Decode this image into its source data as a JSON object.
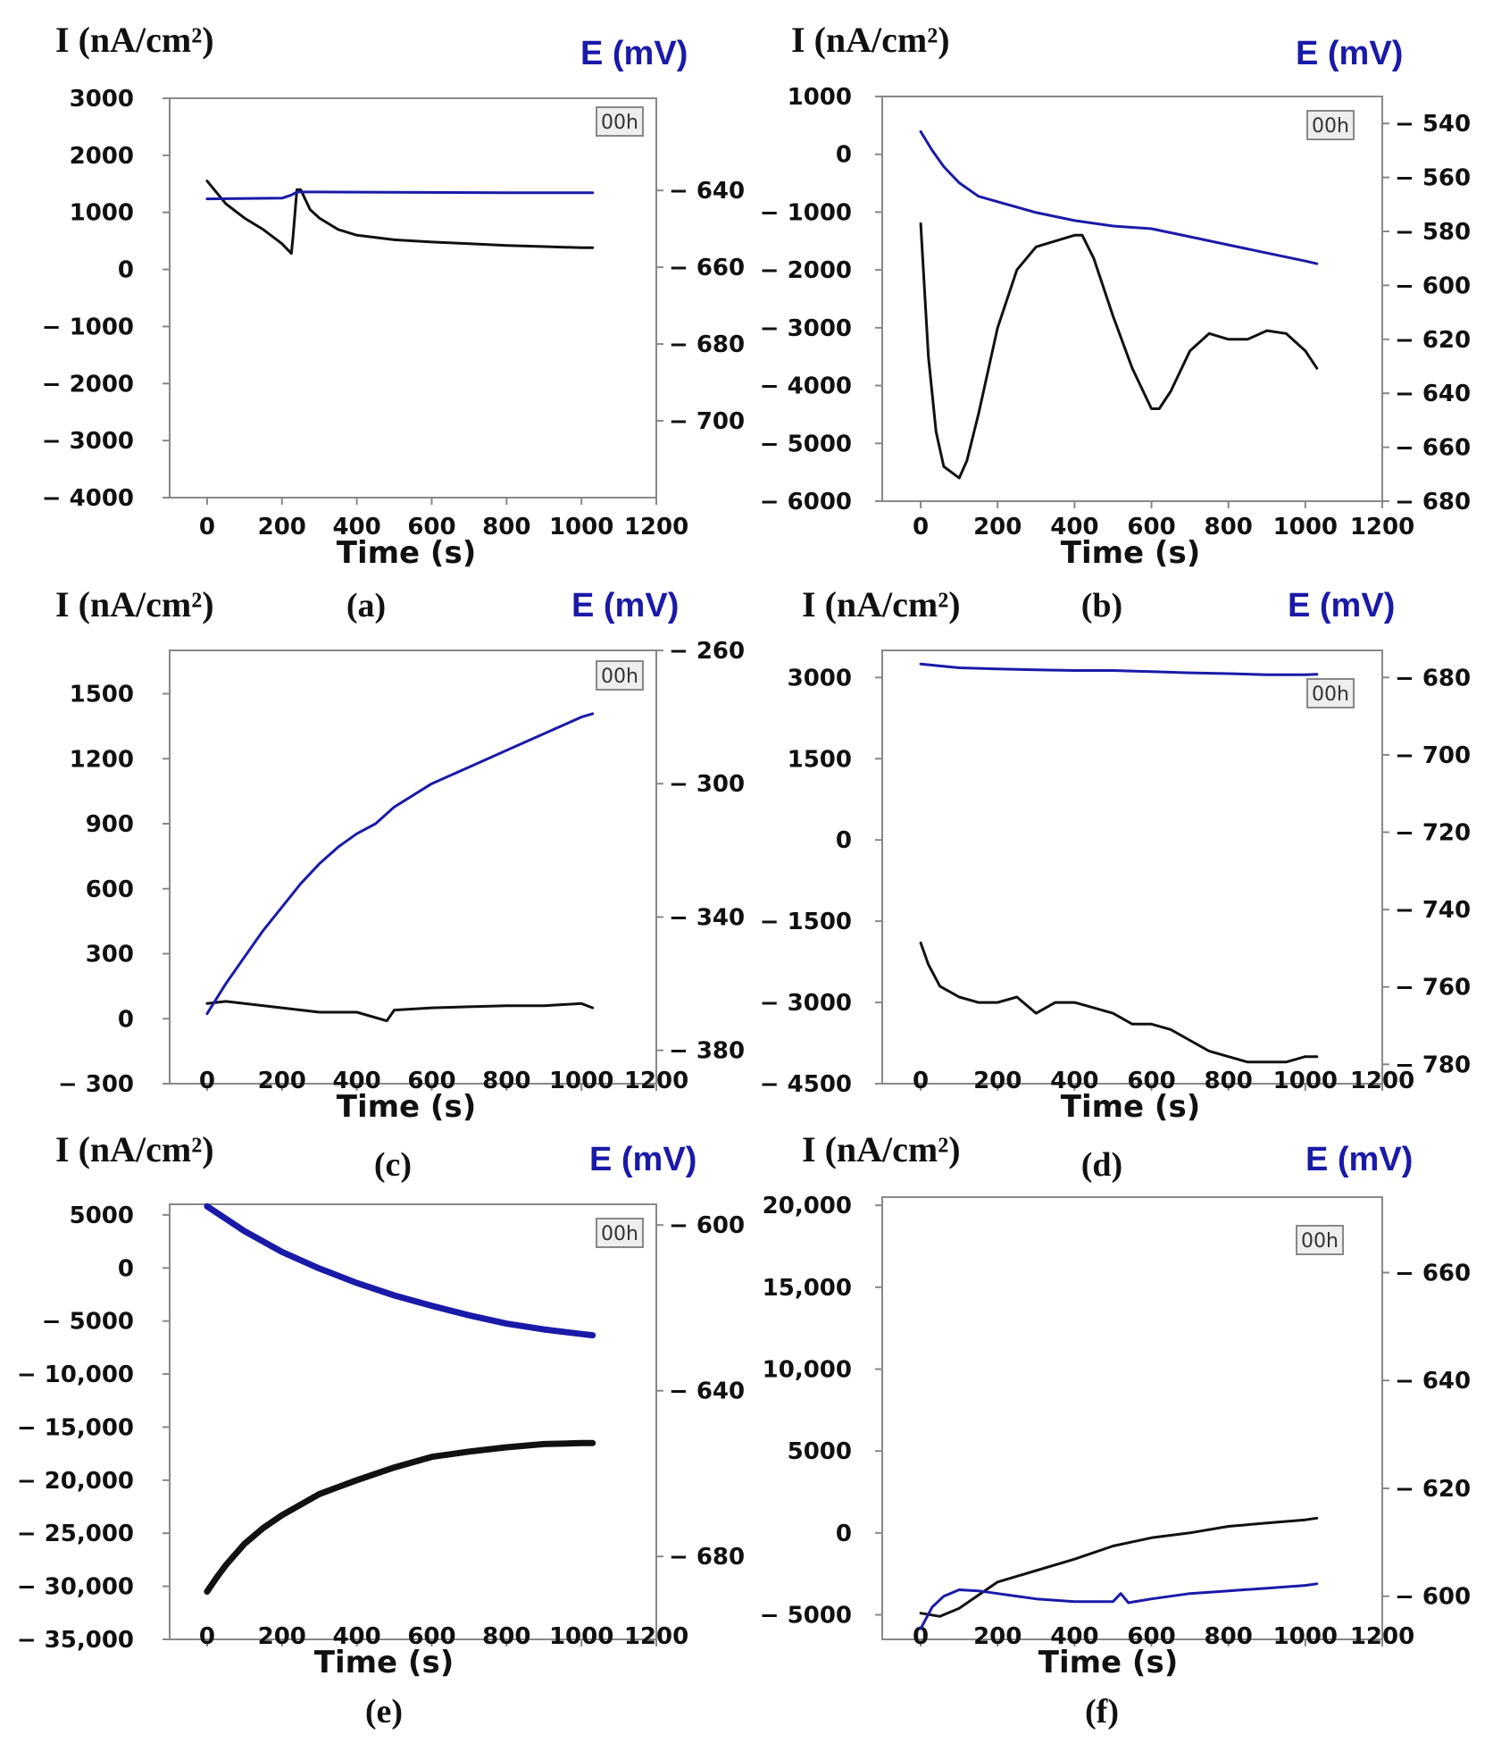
{
  "colors": {
    "current": "#111111",
    "potential": "#1a1aa8",
    "axis": "#888888",
    "badge_bg": "#eeeeee",
    "badge_border": "#888888"
  },
  "chart_data": [
    {
      "type": "line",
      "panel": "(a)",
      "left_label": "I (nA/cm²)",
      "right_label": "E (mV)",
      "xlabel": "Time (s)",
      "badge": "00h",
      "xlim": [
        -100,
        1200
      ],
      "xticks": [
        "0",
        "200",
        "400",
        "600",
        "800",
        "1000",
        "1200"
      ],
      "ylim_left": [
        -4000,
        3000
      ],
      "yticks_left": [
        3000,
        2000,
        1000,
        0,
        -1000,
        -2000,
        -3000,
        -4000
      ],
      "yticks_left_labels": [
        "3000",
        "2000",
        "1000",
        "0",
        "− 1000",
        "− 2000",
        "− 3000",
        "− 4000"
      ],
      "ylim_right": [
        -720,
        -616
      ],
      "yticks_right": [
        -640,
        -660,
        -680,
        -700
      ],
      "yticks_right_labels": [
        "− 640",
        "− 660",
        "− 680",
        "− 700"
      ],
      "series": [
        {
          "name": "I",
          "axis": "left",
          "x": [
            0,
            50,
            100,
            150,
            200,
            225,
            230,
            240,
            250,
            275,
            300,
            350,
            400,
            500,
            600,
            700,
            800,
            900,
            1000,
            1030
          ],
          "y": [
            1550,
            1150,
            900,
            700,
            450,
            280,
            600,
            1400,
            1400,
            1050,
            900,
            700,
            600,
            520,
            480,
            450,
            420,
            400,
            380,
            380
          ]
        },
        {
          "name": "E",
          "axis": "right",
          "x": [
            0,
            200,
            225,
            240,
            300,
            500,
            800,
            1030
          ],
          "y": [
            -642.2,
            -642,
            -641.2,
            -640.4,
            -640.4,
            -640.5,
            -640.6,
            -640.6
          ]
        }
      ]
    },
    {
      "type": "line",
      "panel": "(b)",
      "left_label": "I (nA/cm²)",
      "right_label": "E (mV)",
      "xlabel": "Time (s)",
      "badge": "00h",
      "xlim": [
        -100,
        1200
      ],
      "xticks": [
        "0",
        "200",
        "400",
        "600",
        "800",
        "1000",
        "1200"
      ],
      "ylim_left": [
        -6000,
        1000
      ],
      "yticks_left": [
        1000,
        0,
        -1000,
        -2000,
        -3000,
        -4000,
        -5000,
        -6000
      ],
      "yticks_left_labels": [
        "1000",
        "0",
        "− 1000",
        "− 2000",
        "− 3000",
        "− 4000",
        "− 5000",
        "− 6000"
      ],
      "ylim_right": [
        -680,
        -530
      ],
      "yticks_right": [
        -540,
        -560,
        -580,
        -600,
        -620,
        -640,
        -660,
        -680
      ],
      "yticks_right_labels": [
        "− 540",
        "− 560",
        "− 580",
        "− 600",
        "− 620",
        "− 640",
        "− 660",
        "− 680"
      ],
      "series": [
        {
          "name": "I",
          "axis": "left",
          "x": [
            0,
            20,
            40,
            60,
            80,
            100,
            120,
            150,
            200,
            250,
            300,
            350,
            400,
            420,
            450,
            500,
            550,
            600,
            620,
            650,
            700,
            750,
            800,
            850,
            900,
            950,
            1000,
            1030
          ],
          "y": [
            -1200,
            -3500,
            -4800,
            -5400,
            -5500,
            -5600,
            -5300,
            -4500,
            -3000,
            -2000,
            -1600,
            -1500,
            -1400,
            -1400,
            -1800,
            -2800,
            -3700,
            -4400,
            -4400,
            -4100,
            -3400,
            -3100,
            -3200,
            -3200,
            -3050,
            -3100,
            -3400,
            -3700
          ]
        },
        {
          "name": "E",
          "axis": "right",
          "x": [
            0,
            30,
            60,
            100,
            150,
            200,
            300,
            400,
            500,
            600,
            700,
            800,
            900,
            1000,
            1030
          ],
          "y": [
            -543,
            -550,
            -556,
            -562,
            -567,
            -569,
            -573,
            -576,
            -578,
            -579,
            -582,
            -585,
            -588,
            -591,
            -592
          ]
        }
      ]
    },
    {
      "type": "line",
      "panel": "(c)",
      "left_label": "I (nA/cm²)",
      "right_label": "E (mV)",
      "xlabel": "Time (s)",
      "badge": "00h",
      "xlim": [
        -100,
        1200
      ],
      "xticks": [
        "0",
        "200",
        "400",
        "600",
        "800",
        "1000",
        "1200"
      ],
      "ylim_left": [
        -300,
        1700
      ],
      "yticks_left": [
        1500,
        1200,
        900,
        600,
        300,
        0,
        -300
      ],
      "yticks_left_labels": [
        "1500",
        "1200",
        "900",
        "600",
        "300",
        "0",
        "− 300"
      ],
      "ylim_right": [
        -390,
        -260
      ],
      "yticks_right": [
        -260,
        -300,
        -340,
        -380
      ],
      "yticks_right_labels": [
        "− 260",
        "− 300",
        "− 340",
        "− 380"
      ],
      "series": [
        {
          "name": "I",
          "axis": "left",
          "x": [
            0,
            50,
            100,
            200,
            300,
            400,
            480,
            500,
            600,
            700,
            800,
            900,
            1000,
            1030
          ],
          "y": [
            70,
            80,
            70,
            50,
            30,
            30,
            -10,
            40,
            50,
            55,
            60,
            60,
            70,
            50
          ]
        },
        {
          "name": "E",
          "axis": "right",
          "x": [
            0,
            50,
            100,
            150,
            200,
            250,
            300,
            350,
            400,
            450,
            500,
            600,
            700,
            800,
            900,
            1000,
            1030
          ],
          "y": [
            -369,
            -360,
            -352,
            -344,
            -337,
            -330,
            -324,
            -319,
            -315,
            -312,
            -307,
            -300,
            -295,
            -290,
            -285,
            -280,
            -279
          ]
        }
      ]
    },
    {
      "type": "line",
      "panel": "(d)",
      "left_label": "I (nA/cm²)",
      "right_label": "E (mV)",
      "xlabel": "Time (s)",
      "badge": "00h",
      "xlim": [
        -100,
        1200
      ],
      "xticks": [
        "0",
        "200",
        "400",
        "600",
        "800",
        "1000",
        "1200"
      ],
      "ylim_left": [
        -4500,
        3500
      ],
      "yticks_left": [
        3000,
        1500,
        0,
        -1500,
        -3000,
        -4500
      ],
      "yticks_left_labels": [
        "3000",
        "1500",
        "0",
        "− 1500",
        "− 3000",
        "− 4500"
      ],
      "ylim_right": [
        -785,
        -673
      ],
      "yticks_right": [
        -680,
        -700,
        -720,
        -740,
        -760,
        -780
      ],
      "yticks_right_labels": [
        "− 680",
        "− 700",
        "− 720",
        "− 740",
        "− 760",
        "− 780"
      ],
      "series": [
        {
          "name": "I",
          "axis": "left",
          "x": [
            0,
            20,
            50,
            100,
            150,
            200,
            250,
            300,
            350,
            400,
            450,
            500,
            550,
            600,
            650,
            700,
            750,
            800,
            850,
            900,
            950,
            1000,
            1030
          ],
          "y": [
            -1900,
            -2300,
            -2700,
            -2900,
            -3000,
            -3000,
            -2900,
            -3200,
            -3000,
            -3000,
            -3100,
            -3200,
            -3400,
            -3400,
            -3500,
            -3700,
            -3900,
            -4000,
            -4100,
            -4100,
            -4100,
            -4000,
            -4000
          ]
        },
        {
          "name": "E",
          "axis": "right",
          "x": [
            0,
            100,
            200,
            300,
            400,
            500,
            600,
            700,
            800,
            900,
            1000,
            1030
          ],
          "y": [
            -676.5,
            -677.5,
            -677.8,
            -678,
            -678.2,
            -678.2,
            -678.5,
            -678.8,
            -679,
            -679.3,
            -679.3,
            -679.2
          ]
        }
      ]
    },
    {
      "type": "line",
      "panel": "(e)",
      "left_label": "I (nA/cm²)",
      "right_label": "E (mV)",
      "xlabel": "Time (s)",
      "badge": "00h",
      "xlim": [
        -100,
        1200
      ],
      "xticks": [
        "0",
        "200",
        "400",
        "600",
        "800",
        "1000",
        "1200"
      ],
      "ylim_left": [
        -35000,
        6000
      ],
      "yticks_left": [
        5000,
        0,
        -5000,
        -10000,
        -15000,
        -20000,
        -25000,
        -30000,
        -35000
      ],
      "yticks_left_labels": [
        "5000",
        "0",
        "− 5000",
        "− 10,000",
        "− 15,000",
        "− 20,000",
        "− 25,000",
        "− 30,000",
        "− 35,000"
      ],
      "ylim_right": [
        -700,
        -595
      ],
      "yticks_right": [
        -600,
        -640,
        -680
      ],
      "yticks_right_labels": [
        "− 600",
        "− 640",
        "− 680"
      ],
      "series": [
        {
          "name": "I",
          "axis": "left",
          "x": [
            0,
            25,
            50,
            100,
            150,
            200,
            300,
            400,
            500,
            600,
            700,
            800,
            900,
            1000,
            1030
          ],
          "y": [
            -30500,
            -29200,
            -28000,
            -26000,
            -24500,
            -23300,
            -21300,
            -20000,
            -18800,
            -17800,
            -17300,
            -16900,
            -16600,
            -16500,
            -16500
          ]
        },
        {
          "name": "E",
          "axis": "right",
          "x": [
            0,
            50,
            100,
            150,
            200,
            300,
            400,
            500,
            600,
            700,
            800,
            900,
            1000,
            1030
          ],
          "y": [
            -595.5,
            -598.5,
            -601.5,
            -604,
            -606.5,
            -610.5,
            -614,
            -617,
            -619.5,
            -621.8,
            -623.8,
            -625.2,
            -626.3,
            -626.6
          ]
        }
      ]
    },
    {
      "type": "line",
      "panel": "(f)",
      "left_label": "I (nA/cm²)",
      "right_label": "E (mV)",
      "xlabel": "Time (s)",
      "badge": "00h",
      "xlim": [
        -100,
        1200
      ],
      "xticks": [
        "0",
        "200",
        "400",
        "600",
        "800",
        "1000",
        "1200"
      ],
      "ylim_left": [
        -6500,
        20500
      ],
      "yticks_left": [
        20000,
        15000,
        10000,
        5000,
        0,
        -5000
      ],
      "yticks_left_labels": [
        "20,000",
        "15,000",
        "10,000",
        "5000",
        "0",
        "− 5000"
      ],
      "ylim_right": [
        -592,
        -674
      ],
      "yticks_right": [
        -660,
        -640,
        -620,
        -600
      ],
      "yticks_right_labels": [
        "− 660",
        "− 640",
        "− 620",
        "− 600"
      ],
      "series": [
        {
          "name": "I",
          "axis": "left",
          "x": [
            0,
            50,
            100,
            150,
            200,
            300,
            400,
            500,
            600,
            700,
            800,
            900,
            1000,
            1030
          ],
          "y": [
            -4900,
            -5100,
            -4600,
            -3800,
            -3000,
            -2300,
            -1600,
            -800,
            -300,
            0,
            400,
            600,
            800,
            900
          ]
        },
        {
          "name": "E",
          "axis": "right",
          "x": [
            0,
            30,
            60,
            100,
            150,
            200,
            300,
            400,
            500,
            520,
            540,
            600,
            700,
            800,
            900,
            1000,
            1030
          ],
          "y": [
            -594,
            -598,
            -600,
            -601.2,
            -601,
            -600.5,
            -599.5,
            -599,
            -599,
            -600.5,
            -598.8,
            -599.5,
            -600.5,
            -601,
            -601.5,
            -602,
            -602.3
          ]
        }
      ]
    }
  ]
}
